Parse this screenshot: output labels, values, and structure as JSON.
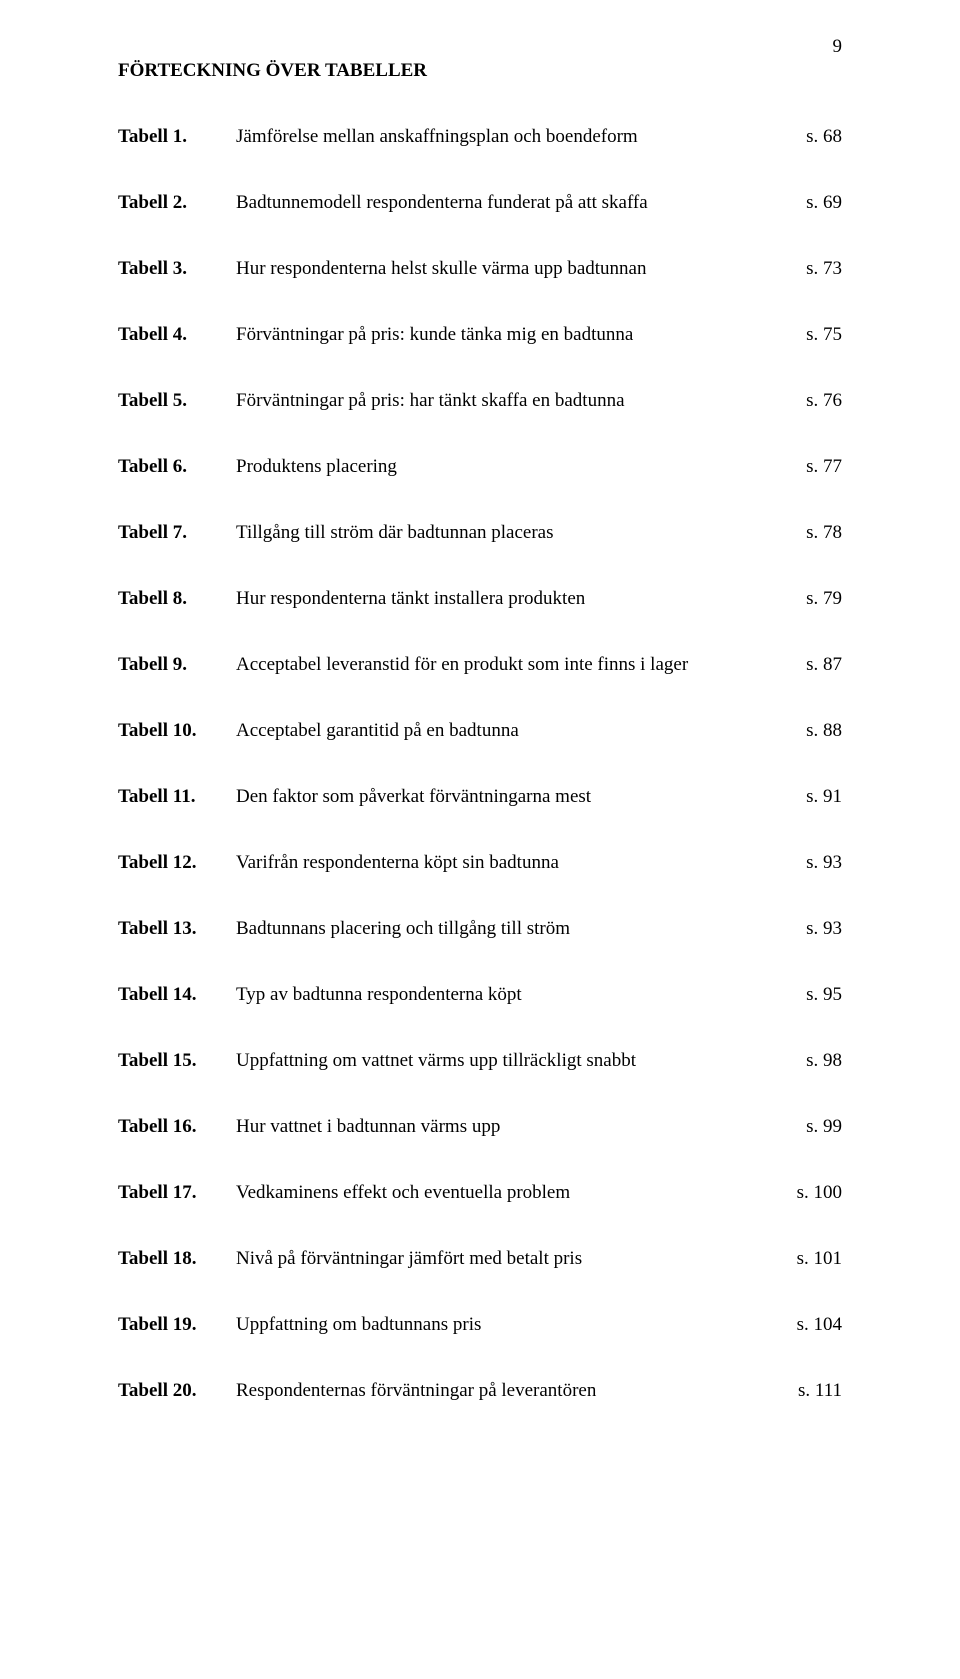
{
  "page_number": "9",
  "heading": "FÖRTECKNING ÖVER TABELLER",
  "text_color": "#000000",
  "background_color": "#ffffff",
  "font_family": "Times New Roman",
  "body_fontsize": 19,
  "entries": [
    {
      "label": "Tabell 1.",
      "desc": "Jämförelse mellan anskaffningsplan och boendeform",
      "page": "s. 68"
    },
    {
      "label": "Tabell 2.",
      "desc": "Badtunnemodell respondenterna funderat på att skaffa",
      "page": "s. 69"
    },
    {
      "label": "Tabell 3.",
      "desc": "Hur respondenterna helst skulle värma upp badtunnan",
      "page": "s. 73"
    },
    {
      "label": "Tabell 4.",
      "desc": "Förväntningar på pris: kunde tänka mig en badtunna",
      "page": "s. 75"
    },
    {
      "label": "Tabell 5.",
      "desc": "Förväntningar på pris: har tänkt skaffa en badtunna",
      "page": "s. 76"
    },
    {
      "label": "Tabell 6.",
      "desc": "Produktens placering",
      "page": "s. 77"
    },
    {
      "label": "Tabell 7.",
      "desc": "Tillgång till ström där badtunnan placeras",
      "page": "s. 78"
    },
    {
      "label": "Tabell 8.",
      "desc": "Hur respondenterna tänkt installera produkten",
      "page": "s. 79"
    },
    {
      "label": "Tabell 9.",
      "desc": "Acceptabel leveranstid för en produkt som inte finns i lager",
      "page": "s. 87"
    },
    {
      "label": "Tabell 10.",
      "desc": "Acceptabel garantitid på en badtunna",
      "page": "s. 88"
    },
    {
      "label": "Tabell 11.",
      "desc": "Den faktor som påverkat förväntningarna mest",
      "page": "s. 91"
    },
    {
      "label": "Tabell 12.",
      "desc": "Varifrån respondenterna köpt sin badtunna",
      "page": "s. 93"
    },
    {
      "label": "Tabell 13.",
      "desc": "Badtunnans placering och tillgång till ström",
      "page": "s. 93"
    },
    {
      "label": "Tabell 14.",
      "desc": "Typ av badtunna respondenterna köpt",
      "page": "s. 95"
    },
    {
      "label": "Tabell 15.",
      "desc": "Uppfattning om vattnet värms upp tillräckligt snabbt",
      "page": "s. 98"
    },
    {
      "label": "Tabell 16.",
      "desc": "Hur vattnet i badtunnan värms upp",
      "page": "s. 99"
    },
    {
      "label": "Tabell 17.",
      "desc": "Vedkaminens effekt och eventuella problem",
      "page": "s. 100"
    },
    {
      "label": "Tabell 18.",
      "desc": "Nivå på förväntningar jämfört med betalt pris",
      "page": "s. 101"
    },
    {
      "label": "Tabell 19.",
      "desc": "Uppfattning om badtunnans pris",
      "page": "s. 104"
    },
    {
      "label": "Tabell 20.",
      "desc": "Respondenternas förväntningar på leverantören",
      "page": "s. 111"
    }
  ]
}
